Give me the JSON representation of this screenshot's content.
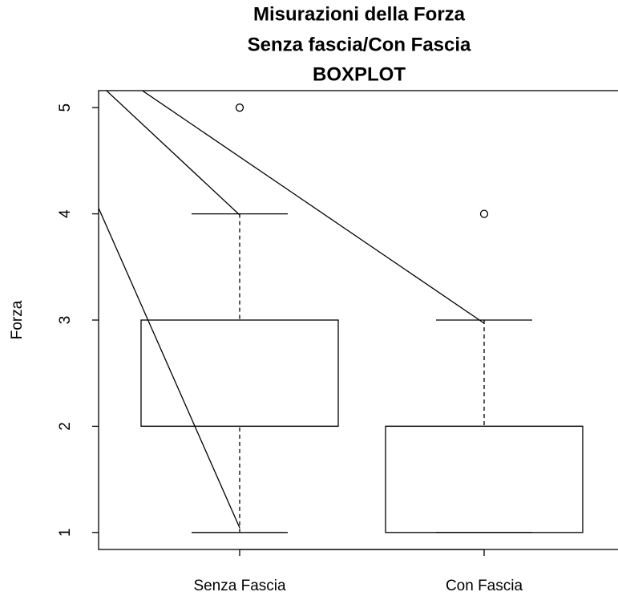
{
  "chart_data": {
    "type": "box",
    "title": [
      "Misurazioni della Forza",
      "Senza fascia/Con Fascia",
      "BOXPLOT"
    ],
    "y_label": "Forza",
    "categories": [
      "Senza Fascia",
      "Con Fascia"
    ],
    "boxes": [
      {
        "min": 1,
        "q1": 2,
        "median": 2,
        "q3": 3,
        "max": 4,
        "outliers": [
          5
        ]
      },
      {
        "min": 1,
        "q1": 1,
        "median": 2,
        "q3": 2,
        "max": 3,
        "outliers": [
          4
        ]
      }
    ],
    "ylim": [
      0.84,
      5.16
    ],
    "yticks": [
      1,
      2,
      3,
      4,
      5
    ]
  }
}
